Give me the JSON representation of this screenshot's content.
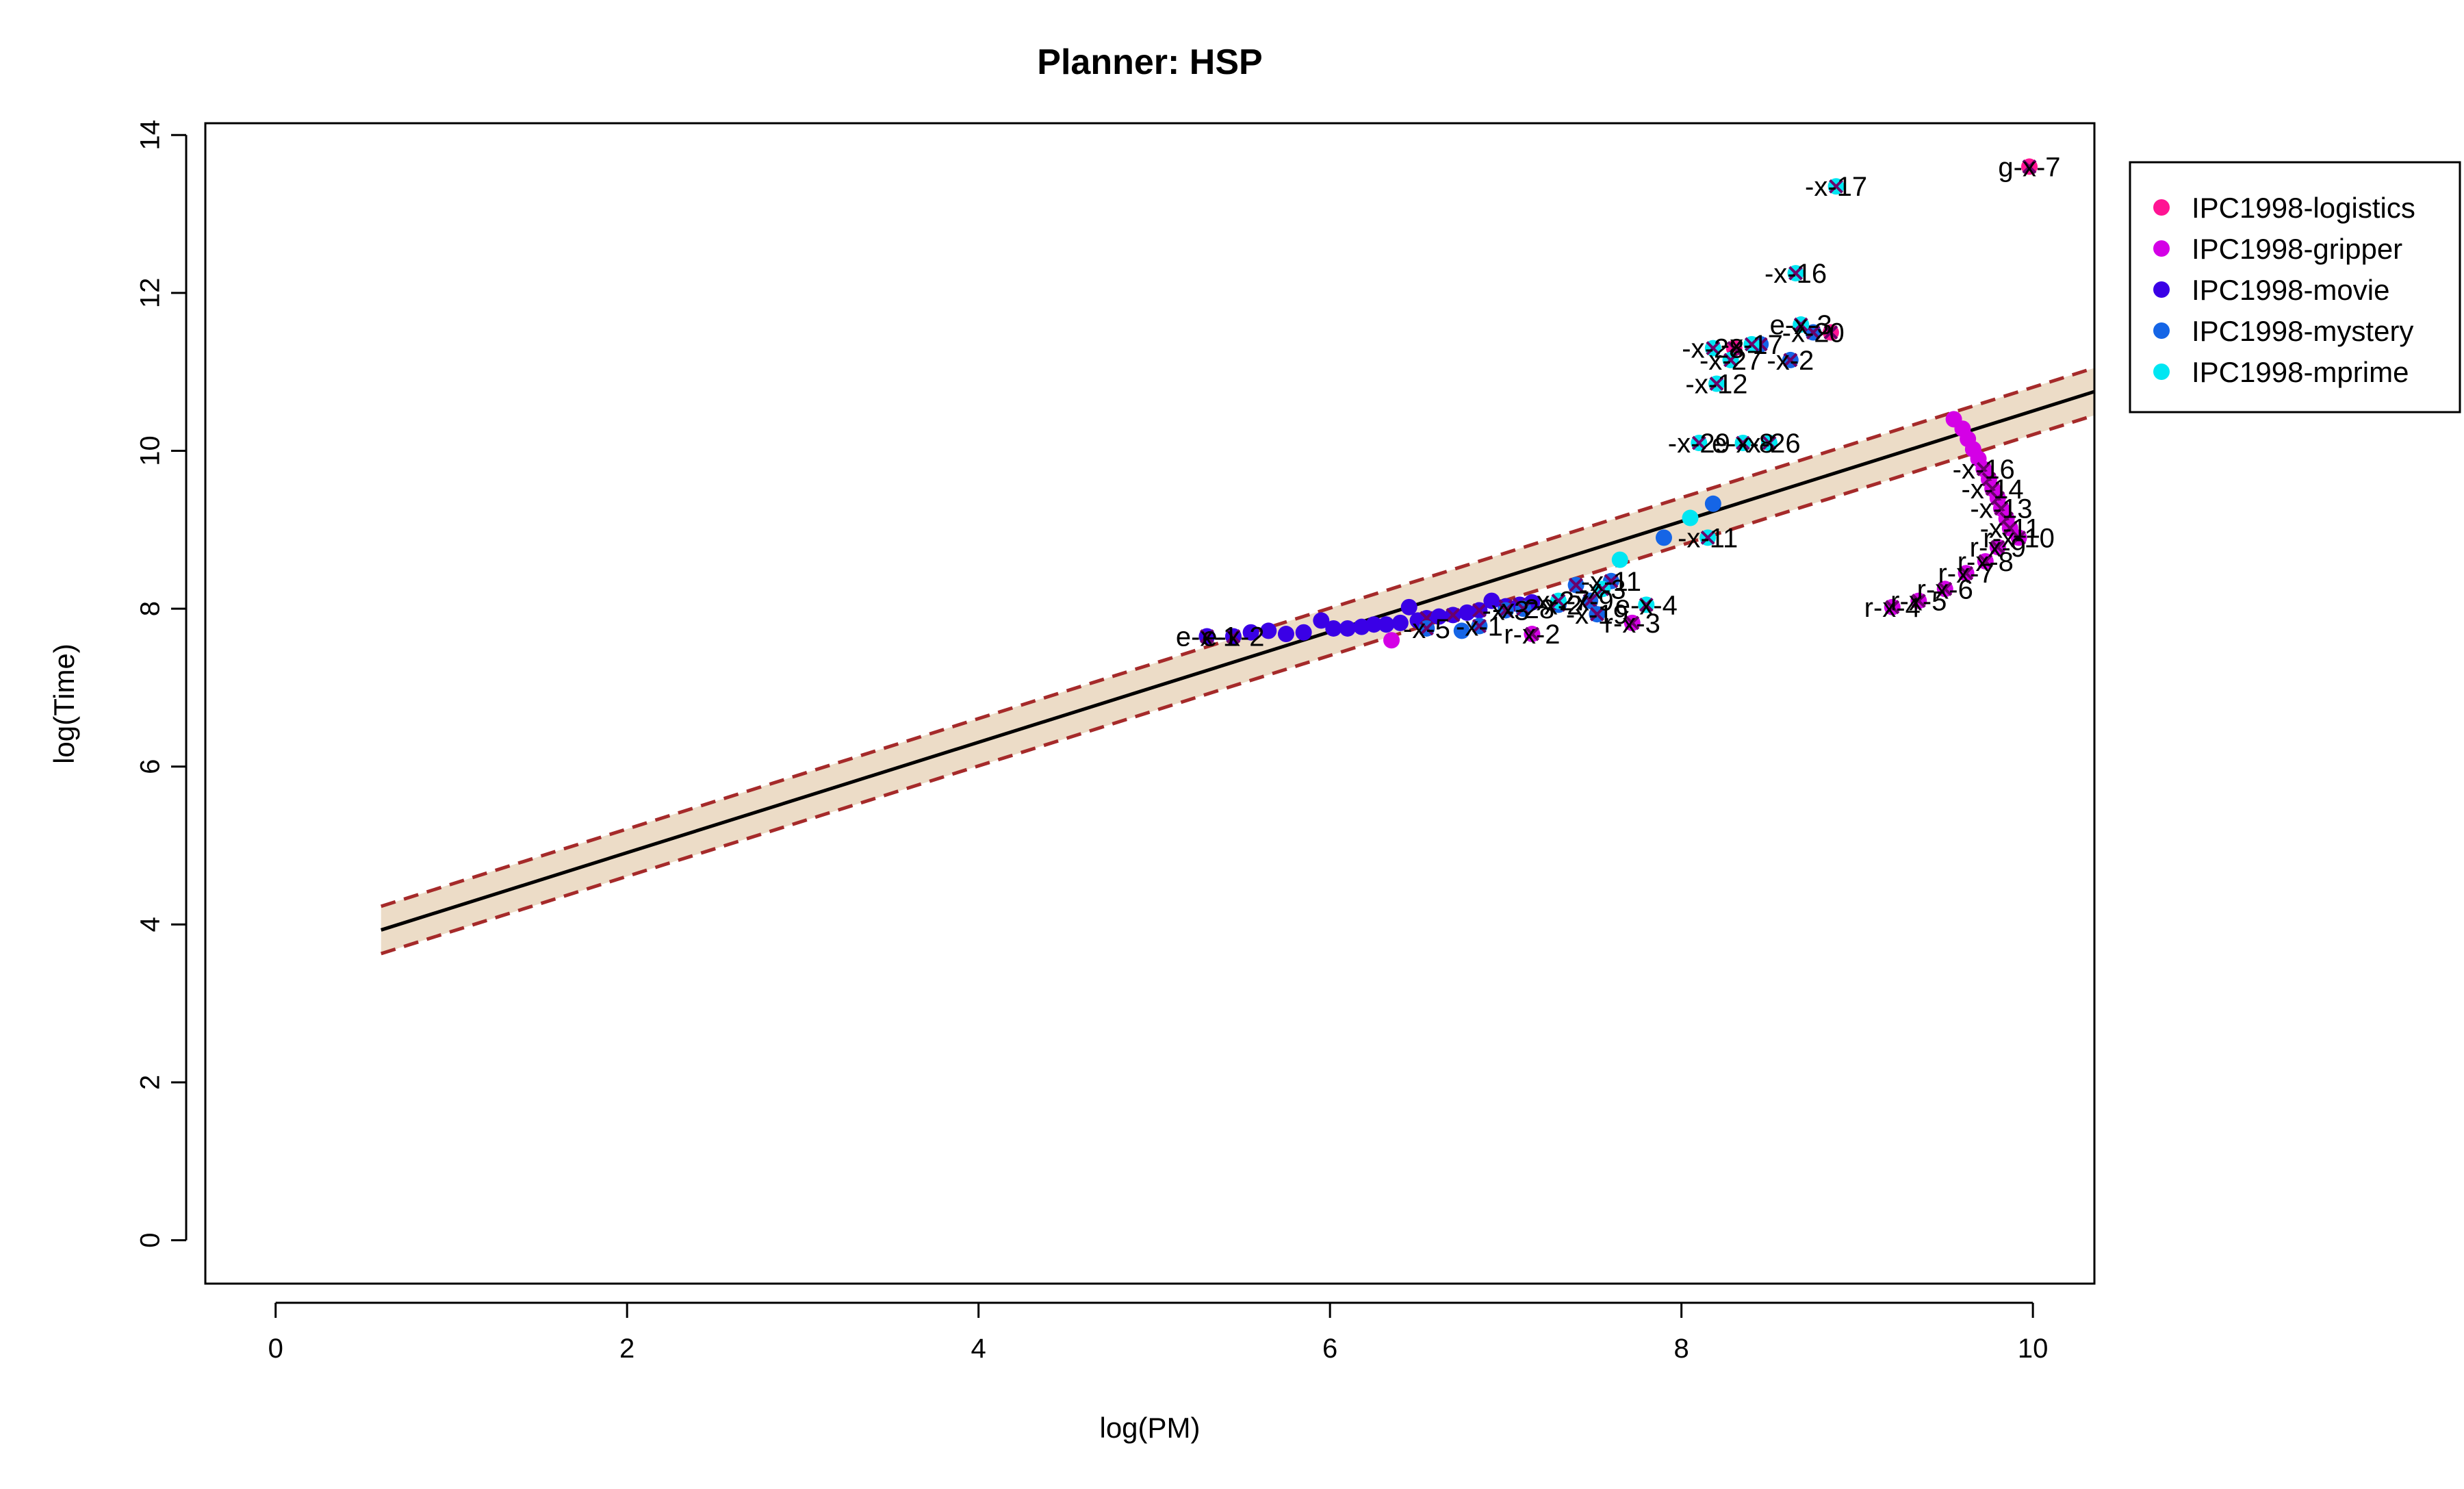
{
  "chart_data": {
    "type": "scatter",
    "title": "Planner: HSP",
    "xlabel": "log(PM)",
    "ylabel": "log(Time)",
    "xlim": [
      -0.4,
      10.35
    ],
    "ylim": [
      -0.55,
      14.15
    ],
    "x_ticks": [
      0,
      2,
      4,
      6,
      8,
      10
    ],
    "y_ticks": [
      0,
      2,
      4,
      6,
      8,
      10,
      12,
      14
    ],
    "legend_position": "outside-right-top",
    "fit_line": {
      "x": [
        0.6,
        10.35
      ],
      "y": [
        3.93,
        10.75
      ],
      "color": "#000000"
    },
    "confidence_band": {
      "x": [
        0.6,
        10.35
      ],
      "upper": [
        4.23,
        11.05
      ],
      "lower": [
        3.63,
        10.45
      ],
      "fill": "#ecdcc7",
      "line_color": "#a52a2a"
    },
    "series": [
      {
        "name": "IPC1998-logistics",
        "color": "#ff1493",
        "points": [
          {
            "x": 9.98,
            "y": 13.6,
            "marked": true,
            "label": "g-x-7"
          },
          {
            "x": 8.85,
            "y": 11.5,
            "marked": true,
            "label": ""
          },
          {
            "x": 8.3,
            "y": 11.3,
            "marked": true,
            "label": ""
          }
        ]
      },
      {
        "name": "IPC1998-gripper",
        "color": "#d400e6",
        "points": [
          {
            "x": 9.55,
            "y": 10.4,
            "marked": false,
            "label": ""
          },
          {
            "x": 9.6,
            "y": 10.28,
            "marked": false,
            "label": ""
          },
          {
            "x": 9.63,
            "y": 10.15,
            "marked": false,
            "label": ""
          },
          {
            "x": 9.66,
            "y": 10.02,
            "marked": false,
            "label": ""
          },
          {
            "x": 9.69,
            "y": 9.9,
            "marked": false,
            "label": ""
          },
          {
            "x": 9.72,
            "y": 9.77,
            "marked": true,
            "label": "-x-16"
          },
          {
            "x": 9.75,
            "y": 9.64,
            "marked": true,
            "label": ""
          },
          {
            "x": 9.77,
            "y": 9.52,
            "marked": true,
            "label": "-x-14"
          },
          {
            "x": 9.8,
            "y": 9.4,
            "marked": true,
            "label": ""
          },
          {
            "x": 9.82,
            "y": 9.27,
            "marked": true,
            "label": "-x-13"
          },
          {
            "x": 9.85,
            "y": 9.14,
            "marked": true,
            "label": ""
          },
          {
            "x": 9.87,
            "y": 9.02,
            "marked": true,
            "label": "-x-11"
          },
          {
            "x": 9.92,
            "y": 8.9,
            "marked": true,
            "label": "r-x-10"
          },
          {
            "x": 9.8,
            "y": 8.78,
            "marked": true,
            "label": "r-x-9"
          },
          {
            "x": 9.73,
            "y": 8.6,
            "marked": true,
            "label": "r-x-8"
          },
          {
            "x": 9.62,
            "y": 8.45,
            "marked": true,
            "label": "r-x-7"
          },
          {
            "x": 9.5,
            "y": 8.25,
            "marked": true,
            "label": "r-x-6"
          },
          {
            "x": 9.35,
            "y": 8.1,
            "marked": true,
            "label": "r-x-5"
          },
          {
            "x": 9.2,
            "y": 8.02,
            "marked": true,
            "label": "r-x-4"
          },
          {
            "x": 7.72,
            "y": 7.82,
            "marked": true,
            "label": "r-x-3"
          },
          {
            "x": 7.15,
            "y": 7.68,
            "marked": true,
            "label": "r-x-2"
          },
          {
            "x": 6.35,
            "y": 7.6,
            "marked": false,
            "label": ""
          }
        ]
      },
      {
        "name": "IPC1998-movie",
        "color": "#3a00e6",
        "points": [
          {
            "x": 5.3,
            "y": 7.65,
            "marked": true,
            "label": "e-x-1"
          },
          {
            "x": 5.45,
            "y": 7.65,
            "marked": true,
            "label": "e-x-2"
          },
          {
            "x": 5.55,
            "y": 7.7,
            "marked": false,
            "label": ""
          },
          {
            "x": 5.65,
            "y": 7.72,
            "marked": false,
            "label": ""
          },
          {
            "x": 5.75,
            "y": 7.68,
            "marked": false,
            "label": ""
          },
          {
            "x": 5.85,
            "y": 7.7,
            "marked": false,
            "label": ""
          },
          {
            "x": 5.95,
            "y": 7.85,
            "marked": false,
            "label": ""
          },
          {
            "x": 6.02,
            "y": 7.75,
            "marked": false,
            "label": ""
          },
          {
            "x": 6.1,
            "y": 7.75,
            "marked": false,
            "label": ""
          },
          {
            "x": 6.18,
            "y": 7.77,
            "marked": false,
            "label": ""
          },
          {
            "x": 6.25,
            "y": 7.8,
            "marked": false,
            "label": ""
          },
          {
            "x": 6.32,
            "y": 7.8,
            "marked": false,
            "label": ""
          },
          {
            "x": 6.4,
            "y": 7.82,
            "marked": false,
            "label": ""
          },
          {
            "x": 6.45,
            "y": 8.02,
            "marked": false,
            "label": ""
          },
          {
            "x": 6.5,
            "y": 7.85,
            "marked": false,
            "label": ""
          },
          {
            "x": 6.55,
            "y": 7.88,
            "marked": true,
            "label": ""
          },
          {
            "x": 6.62,
            "y": 7.9,
            "marked": false,
            "label": ""
          },
          {
            "x": 6.7,
            "y": 7.92,
            "marked": true,
            "label": ""
          },
          {
            "x": 6.78,
            "y": 7.95,
            "marked": false,
            "label": ""
          },
          {
            "x": 6.85,
            "y": 7.98,
            "marked": true,
            "label": ""
          },
          {
            "x": 6.92,
            "y": 8.1,
            "marked": false,
            "label": ""
          },
          {
            "x": 7.0,
            "y": 8.03,
            "marked": true,
            "label": ""
          },
          {
            "x": 7.08,
            "y": 8.05,
            "marked": true,
            "label": ""
          },
          {
            "x": 7.15,
            "y": 8.08,
            "marked": false,
            "label": ""
          }
        ]
      },
      {
        "name": "IPC1998-mystery",
        "color": "#1565e6",
        "points": [
          {
            "x": 6.55,
            "y": 7.75,
            "marked": true,
            "label": "-x-5"
          },
          {
            "x": 6.75,
            "y": 7.72,
            "marked": false,
            "label": ""
          },
          {
            "x": 6.85,
            "y": 7.78,
            "marked": true,
            "label": "-x-1"
          },
          {
            "x": 7.0,
            "y": 7.98,
            "marked": true,
            "label": "-x-3"
          },
          {
            "x": 7.1,
            "y": 8.0,
            "marked": true,
            "label": "-x-28"
          },
          {
            "x": 7.3,
            "y": 8.05,
            "marked": true,
            "label": "-x-2"
          },
          {
            "x": 7.4,
            "y": 8.3,
            "marked": true,
            "label": ""
          },
          {
            "x": 7.48,
            "y": 8.1,
            "marked": true,
            "label": "-x-9"
          },
          {
            "x": 7.52,
            "y": 7.93,
            "marked": true,
            "label": "-x-19"
          },
          {
            "x": 7.6,
            "y": 8.35,
            "marked": true,
            "label": "-x-11"
          },
          {
            "x": 7.9,
            "y": 8.9,
            "marked": false,
            "label": ""
          },
          {
            "x": 8.18,
            "y": 9.33,
            "marked": false,
            "label": ""
          },
          {
            "x": 8.45,
            "y": 11.35,
            "marked": true,
            "label": ""
          },
          {
            "x": 8.62,
            "y": 11.15,
            "marked": true,
            "label": "-x-2"
          },
          {
            "x": 8.75,
            "y": 11.5,
            "marked": true,
            "label": "-x-20"
          }
        ]
      },
      {
        "name": "IPC1998-mprime",
        "color": "#00e6f2",
        "points": [
          {
            "x": 7.3,
            "y": 8.1,
            "marked": true,
            "label": "-x-27"
          },
          {
            "x": 7.55,
            "y": 8.25,
            "marked": true,
            "label": "-x-3"
          },
          {
            "x": 7.65,
            "y": 8.62,
            "marked": false,
            "label": ""
          },
          {
            "x": 7.8,
            "y": 8.05,
            "marked": true,
            "label": "e-x-4"
          },
          {
            "x": 8.05,
            "y": 9.15,
            "marked": false,
            "label": ""
          },
          {
            "x": 8.15,
            "y": 8.9,
            "marked": true,
            "label": "-x-11"
          },
          {
            "x": 8.1,
            "y": 10.1,
            "marked": true,
            "label": "-x-29"
          },
          {
            "x": 8.35,
            "y": 10.1,
            "marked": true,
            "label": "e-x-8"
          },
          {
            "x": 8.5,
            "y": 10.1,
            "marked": true,
            "label": "-x-26"
          },
          {
            "x": 8.2,
            "y": 10.85,
            "marked": true,
            "label": "-x-12"
          },
          {
            "x": 8.28,
            "y": 11.15,
            "marked": true,
            "label": "-x-27"
          },
          {
            "x": 8.18,
            "y": 11.3,
            "marked": true,
            "label": "-x-28"
          },
          {
            "x": 8.4,
            "y": 11.35,
            "marked": true,
            "label": "-x-17"
          },
          {
            "x": 8.68,
            "y": 11.6,
            "marked": true,
            "label": "e-x-3"
          },
          {
            "x": 8.65,
            "y": 12.25,
            "marked": true,
            "label": "-x-16"
          },
          {
            "x": 8.88,
            "y": 13.35,
            "marked": true,
            "label": "-x-17"
          }
        ]
      }
    ]
  }
}
